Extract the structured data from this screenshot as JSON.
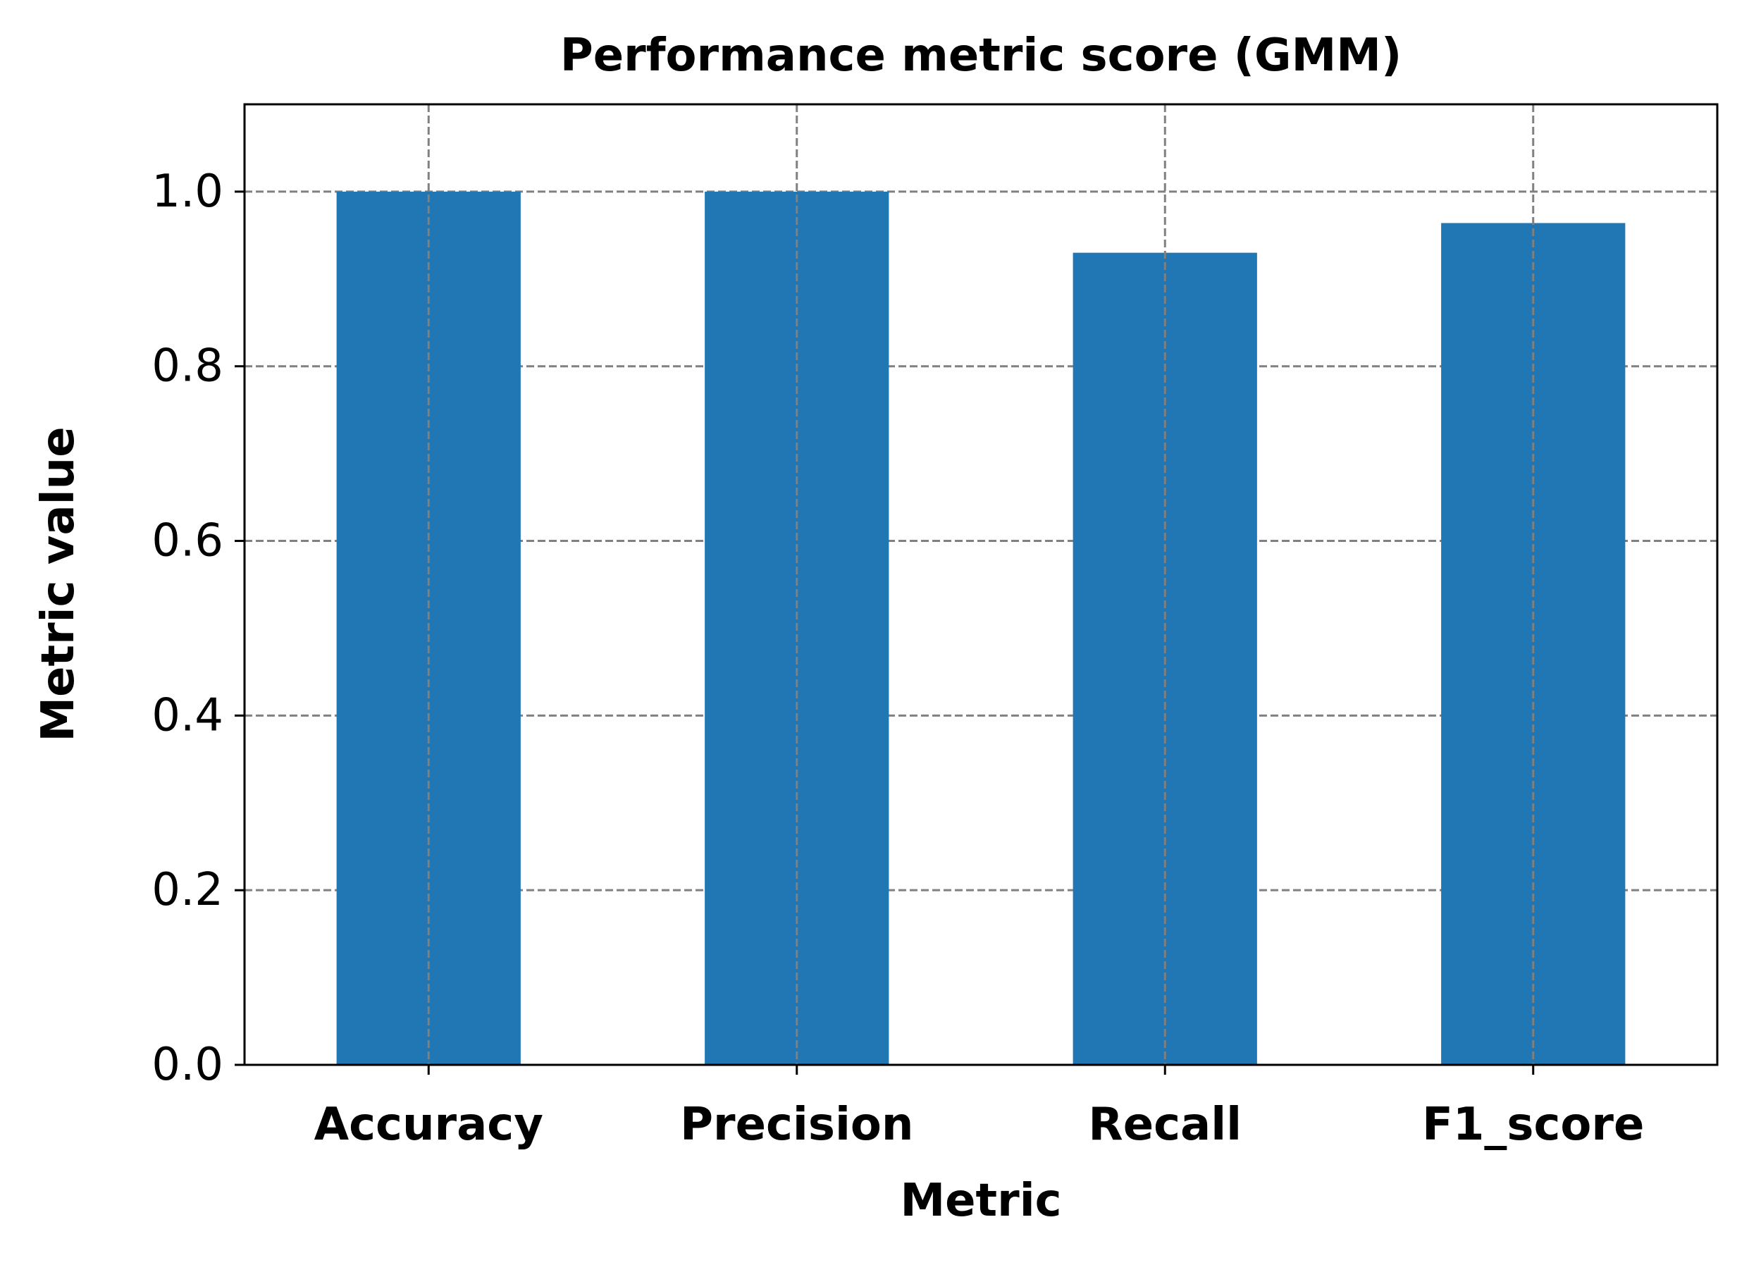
{
  "chart_data": {
    "type": "bar",
    "title": "Performance metric score (GMM)",
    "xlabel": "Metric",
    "ylabel": "Metric value",
    "categories": [
      "Accuracy",
      "Precision",
      "Recall",
      "F1_score"
    ],
    "values": [
      1.0,
      1.0,
      0.93,
      0.964
    ],
    "ylim": [
      0,
      1.1
    ],
    "yticks": [
      0.0,
      0.2,
      0.4,
      0.6,
      0.8,
      1.0
    ],
    "ytick_labels": [
      "0.0",
      "0.2",
      "0.4",
      "0.6",
      "0.8",
      "1.0"
    ],
    "grid": true,
    "grid_style": "dashed",
    "legend": "none",
    "bar_color": "#2077b4",
    "grid_color": "#808080"
  }
}
